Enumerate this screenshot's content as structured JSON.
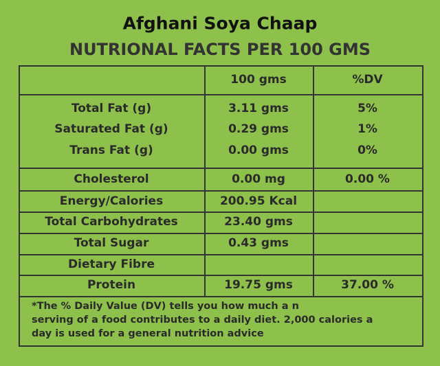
{
  "title": "Afghani Soya Chaap",
  "subtitle": "NUTRIONAL FACTS PER 100 GMS",
  "table": {
    "header": {
      "amount": "100 gms",
      "dv": "%DV"
    },
    "rows": [
      {
        "nutrient": "Total Fat (g)",
        "amount": "3.11 gms",
        "dv": "5%"
      },
      {
        "nutrient": "Saturated Fat (g)",
        "amount": "0.29 gms",
        "dv": "1%"
      },
      {
        "nutrient": "Trans Fat (g)",
        "amount": "0.00 gms",
        "dv": "0%"
      },
      {
        "nutrient": "Cholesterol",
        "amount": "0.00 mg",
        "dv": "0.00 %"
      },
      {
        "nutrient": "Energy/Calories",
        "amount": "200.95 Kcal",
        "dv": null
      },
      {
        "nutrient": "Total Carbohydrates",
        "amount": "23.40 gms",
        "dv": null
      },
      {
        "nutrient": "Total Sugar",
        "amount": "0.43 gms",
        "dv": null
      },
      {
        "nutrient": "Dietary Fibre",
        "amount": null,
        "dv": null
      },
      {
        "nutrient": "Protein",
        "amount": "19.75 gms",
        "dv": "37.00 %"
      }
    ],
    "footnote": [
      "*The % Daily Value (DV) tells you how much a n",
      "serving of a food contributes to a daily diet. 2,000 calories a",
      "day is used for a general nutrition advice"
    ]
  }
}
